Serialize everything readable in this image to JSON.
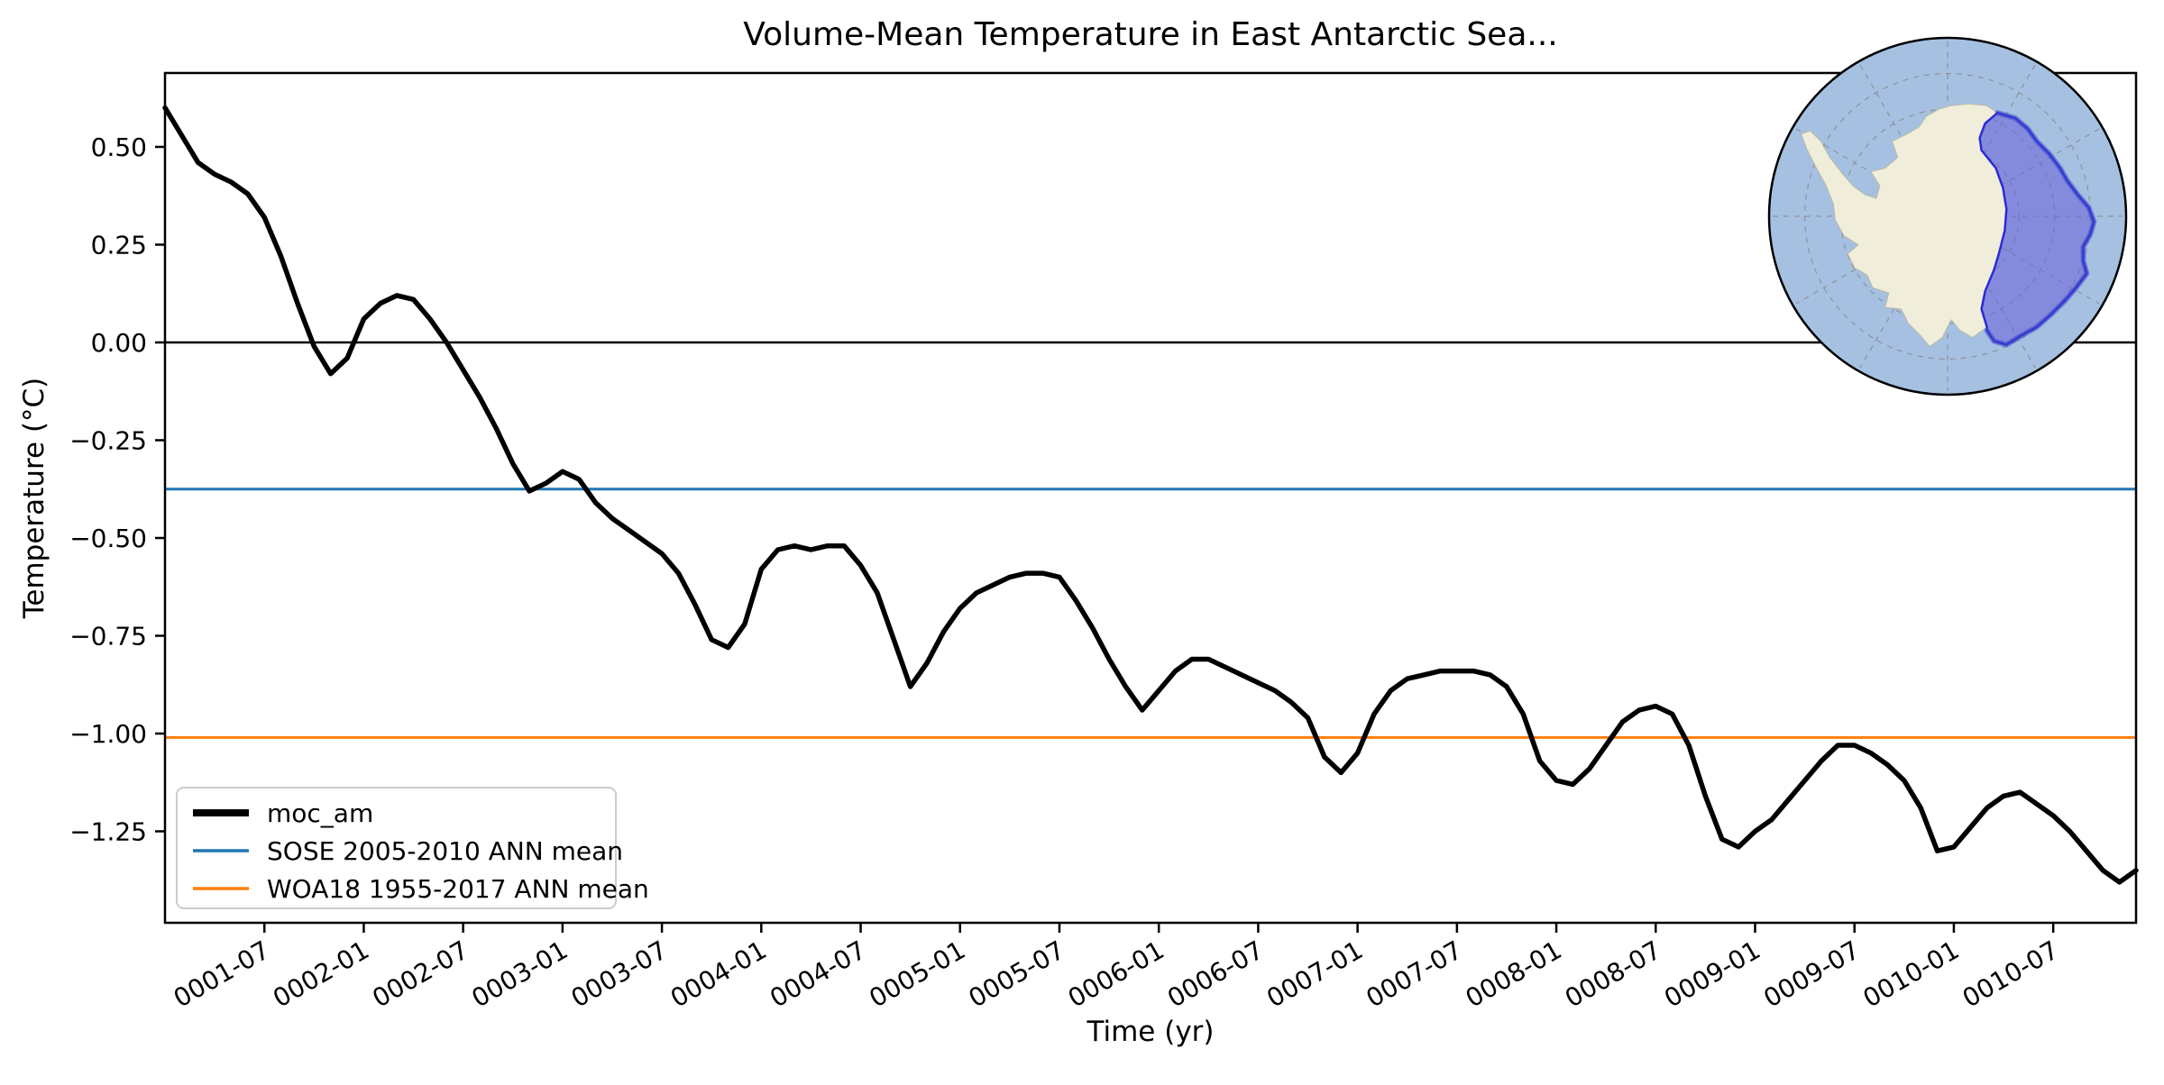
{
  "figure": {
    "title": "Volume-Mean Temperature in East Antarctic Sea...",
    "xlabel": "Time (yr)",
    "ylabel": "Temperature (°C)"
  },
  "legend": {
    "position": "lower left",
    "items": [
      {
        "label": "moc_am",
        "color": "#000000",
        "linewidth": 8
      },
      {
        "label": "SOSE 2005-2010 ANN mean",
        "color": "#1f77b4",
        "linewidth": 3.5
      },
      {
        "label": "WOA18 1955-2017 ANN mean",
        "color": "#ff7f0e",
        "linewidth": 3.5
      }
    ]
  },
  "axis_ticks": {
    "x_labels": [
      "0001-07",
      "0002-01",
      "0002-07",
      "0003-01",
      "0003-07",
      "0004-01",
      "0004-07",
      "0005-01",
      "0005-07",
      "0006-01",
      "0006-07",
      "0007-01",
      "0007-07",
      "0008-01",
      "0008-07",
      "0009-01",
      "0009-07",
      "0010-01",
      "0010-07"
    ],
    "y_labels": [
      "0.50",
      "0.25",
      "0.00",
      "−0.25",
      "−0.50",
      "−0.75",
      "−1.00",
      "−1.25"
    ]
  },
  "chart_data": {
    "type": "line",
    "title": "Volume-Mean Temperature in East Antarctic Sea...",
    "xlabel": "Time (yr)",
    "ylabel": "Temperature (°C)",
    "grid": false,
    "legend_position": "lower left",
    "xlim": [
      "0001-01",
      "0010-12"
    ],
    "ylim": [
      -1.48,
      0.69
    ],
    "y_tick_values": [
      0.5,
      0.25,
      0.0,
      -0.25,
      -0.5,
      -0.75,
      -1.0,
      -1.25
    ],
    "x_tick_labels": [
      "0001-07",
      "0002-01",
      "0002-07",
      "0003-01",
      "0003-07",
      "0004-01",
      "0004-07",
      "0005-01",
      "0005-07",
      "0006-01",
      "0006-07",
      "0007-01",
      "0007-07",
      "0008-01",
      "0008-07",
      "0009-01",
      "0009-07",
      "0010-01",
      "0010-07"
    ],
    "x": [
      "0001-01",
      "0001-02",
      "0001-03",
      "0001-04",
      "0001-05",
      "0001-06",
      "0001-07",
      "0001-08",
      "0001-09",
      "0001-10",
      "0001-11",
      "0001-12",
      "0002-01",
      "0002-02",
      "0002-03",
      "0002-04",
      "0002-05",
      "0002-06",
      "0002-07",
      "0002-08",
      "0002-09",
      "0002-10",
      "0002-11",
      "0002-12",
      "0003-01",
      "0003-02",
      "0003-03",
      "0003-04",
      "0003-05",
      "0003-06",
      "0003-07",
      "0003-08",
      "0003-09",
      "0003-10",
      "0003-11",
      "0003-12",
      "0004-01",
      "0004-02",
      "0004-03",
      "0004-04",
      "0004-05",
      "0004-06",
      "0004-07",
      "0004-08",
      "0004-09",
      "0004-10",
      "0004-11",
      "0004-12",
      "0005-01",
      "0005-02",
      "0005-03",
      "0005-04",
      "0005-05",
      "0005-06",
      "0005-07",
      "0005-08",
      "0005-09",
      "0005-10",
      "0005-11",
      "0005-12",
      "0006-01",
      "0006-02",
      "0006-03",
      "0006-04",
      "0006-05",
      "0006-06",
      "0006-07",
      "0006-08",
      "0006-09",
      "0006-10",
      "0006-11",
      "0006-12",
      "0007-01",
      "0007-02",
      "0007-03",
      "0007-04",
      "0007-05",
      "0007-06",
      "0007-07",
      "0007-08",
      "0007-09",
      "0007-10",
      "0007-11",
      "0007-12",
      "0008-01",
      "0008-02",
      "0008-03",
      "0008-04",
      "0008-05",
      "0008-06",
      "0008-07",
      "0008-08",
      "0008-09",
      "0008-10",
      "0008-11",
      "0008-12",
      "0009-01",
      "0009-02",
      "0009-03",
      "0009-04",
      "0009-05",
      "0009-06",
      "0009-07",
      "0009-08",
      "0009-09",
      "0009-10",
      "0009-11",
      "0009-12",
      "0010-01",
      "0010-02",
      "0010-03",
      "0010-04",
      "0010-05",
      "0010-06",
      "0010-07",
      "0010-08",
      "0010-09",
      "0010-10",
      "0010-11",
      "0010-12"
    ],
    "series": [
      {
        "name": "moc_am",
        "color": "#000000",
        "linewidth": 5.5,
        "values": [
          0.6,
          0.53,
          0.46,
          0.43,
          0.41,
          0.38,
          0.32,
          0.22,
          0.1,
          -0.01,
          -0.08,
          -0.04,
          0.06,
          0.1,
          0.12,
          0.11,
          0.06,
          0.0,
          -0.07,
          -0.14,
          -0.22,
          -0.31,
          -0.38,
          -0.36,
          -0.33,
          -0.35,
          -0.41,
          -0.45,
          -0.48,
          -0.51,
          -0.54,
          -0.59,
          -0.67,
          -0.76,
          -0.78,
          -0.72,
          -0.58,
          -0.53,
          -0.52,
          -0.53,
          -0.52,
          -0.52,
          -0.57,
          -0.64,
          -0.76,
          -0.88,
          -0.82,
          -0.74,
          -0.68,
          -0.64,
          -0.62,
          -0.6,
          -0.59,
          -0.59,
          -0.6,
          -0.66,
          -0.73,
          -0.81,
          -0.88,
          -0.94,
          -0.89,
          -0.84,
          -0.81,
          -0.81,
          -0.83,
          -0.85,
          -0.87,
          -0.89,
          -0.92,
          -0.96,
          -1.06,
          -1.1,
          -1.05,
          -0.95,
          -0.89,
          -0.86,
          -0.85,
          -0.84,
          -0.84,
          -0.84,
          -0.85,
          -0.88,
          -0.95,
          -1.07,
          -1.12,
          -1.13,
          -1.09,
          -1.03,
          -0.97,
          -0.94,
          -0.93,
          -0.95,
          -1.03,
          -1.16,
          -1.27,
          -1.29,
          -1.25,
          -1.22,
          -1.17,
          -1.12,
          -1.07,
          -1.03,
          -1.03,
          -1.05,
          -1.08,
          -1.12,
          -1.19,
          -1.3,
          -1.29,
          -1.24,
          -1.19,
          -1.16,
          -1.15,
          -1.18,
          -1.21,
          -1.25,
          -1.3,
          -1.35,
          -1.38,
          -1.35
        ]
      }
    ],
    "reference_lines": [
      {
        "name": "zero line",
        "value": 0.0,
        "color": "#000000",
        "linewidth": 2.5,
        "in_legend": false
      },
      {
        "name": "SOSE 2005-2010 ANN mean",
        "value": -0.375,
        "color": "#1f77b4",
        "linewidth": 3,
        "in_legend": true
      },
      {
        "name": "WOA18 1955-2017 ANN mean",
        "value": -1.01,
        "color": "#ff7f0e",
        "linewidth": 3,
        "in_legend": true
      }
    ]
  },
  "inset_map": {
    "projection": "south-polar",
    "colors": {
      "ocean": "#a6c0e2",
      "land": "#f0eedb",
      "land_edge": "#b9b9a4",
      "region_fill": "#695fd7",
      "region_fill_opacity": 0.55,
      "region_edge": "#2b2bd6",
      "coast_fringe": "#3b45cc",
      "graticule": "#8a8a8a",
      "boundary": "#000000"
    }
  }
}
